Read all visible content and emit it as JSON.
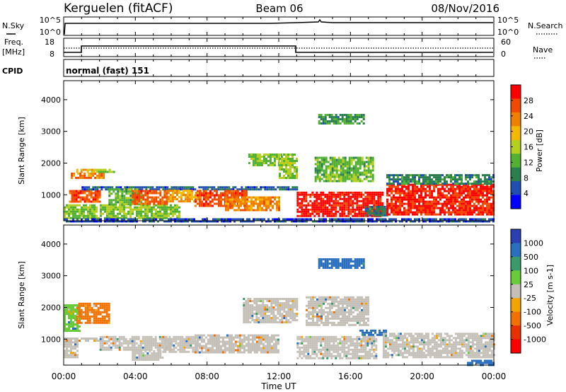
{
  "header": {
    "radar": "Kerguelen (fitACF)",
    "beam": "Beam 06",
    "date": "08/Nov/2016"
  },
  "nsky_panel": {
    "left_label": "N.Sky",
    "left_ticks": [
      "10^5",
      "10^0"
    ],
    "right_label": "N.Search",
    "right_ticks": [
      "10^5",
      "10^0"
    ]
  },
  "freq_panel": {
    "left_label_1": "Freq.",
    "left_label_2": "[MHz]",
    "left_ticks": [
      "18",
      "8"
    ],
    "right_label": "Nave",
    "right_ticks": [
      "60",
      "0"
    ]
  },
  "cpid": {
    "label": "CPID",
    "value": "normal (fast) 151"
  },
  "colors": {
    "power": [
      "#0000ff",
      "#1f4fb0",
      "#2a7f4e",
      "#52b032",
      "#b4cf1f",
      "#f5b800",
      "#f08000",
      "#f04a00",
      "#ff0000"
    ],
    "velocity": [
      "#2a3fb0",
      "#2a6fbf",
      "#3a9a6a",
      "#6acb3a",
      "#c4c0b8",
      "#f3a400",
      "#f07000",
      "#e83000",
      "#ff0000"
    ]
  },
  "chart_data": [
    {
      "type": "heatmap",
      "title": "Power",
      "ylabel": "Slant Range [km]",
      "ylim": [
        180,
        4600
      ],
      "yticks": [
        1000,
        2000,
        3000,
        4000
      ],
      "xlim": [
        0,
        24
      ],
      "colorbar": {
        "label": "Power [dB]",
        "ticks": [
          4,
          8,
          12,
          16,
          20,
          24,
          28
        ],
        "range": [
          0,
          32
        ]
      },
      "patches": [
        {
          "t0": 0.0,
          "t1": 6.5,
          "r0": 250,
          "r1": 700,
          "v": 14
        },
        {
          "t0": 0.3,
          "t1": 2.0,
          "r0": 750,
          "r1": 1150,
          "v": 27
        },
        {
          "t0": 0.4,
          "t1": 2.2,
          "r0": 1500,
          "r1": 1700,
          "v": 24
        },
        {
          "t0": 0.7,
          "t1": 1.8,
          "r0": 1700,
          "r1": 1820,
          "v": 20
        },
        {
          "t0": 1.8,
          "t1": 2.8,
          "r0": 1720,
          "r1": 1820,
          "v": 14
        },
        {
          "t0": 1.0,
          "t1": 13.0,
          "r0": 1180,
          "r1": 1270,
          "v": 6
        },
        {
          "t0": 2.5,
          "t1": 4.3,
          "r0": 720,
          "r1": 1200,
          "v": 13
        },
        {
          "t0": 3.8,
          "t1": 5.8,
          "r0": 720,
          "r1": 1150,
          "v": 26
        },
        {
          "t0": 5.8,
          "t1": 7.6,
          "r0": 780,
          "r1": 1160,
          "v": 21
        },
        {
          "t0": 7.3,
          "t1": 10.2,
          "r0": 680,
          "r1": 1150,
          "v": 27
        },
        {
          "t0": 9.0,
          "t1": 12.0,
          "r0": 500,
          "r1": 950,
          "v": 23
        },
        {
          "t0": 10.3,
          "t1": 12.5,
          "r0": 1900,
          "r1": 2300,
          "v": 14
        },
        {
          "t0": 12.0,
          "t1": 13.0,
          "r0": 1500,
          "r1": 2300,
          "v": 15
        },
        {
          "t0": 13.0,
          "t1": 17.8,
          "r0": 350,
          "r1": 1100,
          "v": 30
        },
        {
          "t0": 14.0,
          "t1": 17.2,
          "r0": 1450,
          "r1": 2200,
          "v": 13
        },
        {
          "t0": 14.2,
          "t1": 16.8,
          "r0": 3250,
          "r1": 3550,
          "v": 10
        },
        {
          "t0": 16.8,
          "t1": 18.0,
          "r0": 350,
          "r1": 650,
          "v": 8
        },
        {
          "t0": 18.0,
          "t1": 24.0,
          "r0": 350,
          "r1": 1350,
          "v": 29
        },
        {
          "t0": 18.0,
          "t1": 24.0,
          "r0": 1380,
          "r1": 1650,
          "v": 9
        },
        {
          "t0": 0.0,
          "t1": 24.0,
          "r0": 180,
          "r1": 260,
          "v": 5
        }
      ]
    },
    {
      "type": "heatmap",
      "title": "Velocity",
      "ylabel": "Slant Range [km]",
      "ylim": [
        180,
        4600
      ],
      "yticks": [
        1000,
        2000,
        3000,
        4000
      ],
      "xlim": [
        0,
        24
      ],
      "colorbar": {
        "label": "Velocity [m s-1]",
        "ticks": [
          1000,
          500,
          100,
          25,
          -25,
          -100,
          -500,
          -1000
        ]
      },
      "patches": [
        {
          "t0": 0.0,
          "t1": 0.9,
          "r0": 1250,
          "r1": 2100,
          "v": 4
        },
        {
          "t0": 0.0,
          "t1": 0.8,
          "r0": 400,
          "r1": 1000,
          "v": 0
        },
        {
          "t0": 0.7,
          "t1": 2.5,
          "r0": 1500,
          "r1": 2150,
          "v": -150
        },
        {
          "t0": 0.0,
          "t1": 2.0,
          "r0": 950,
          "r1": 1050,
          "v": 0
        },
        {
          "t0": 2.0,
          "t1": 6.0,
          "r0": 650,
          "r1": 1100,
          "v": 0
        },
        {
          "t0": 3.8,
          "t1": 5.5,
          "r0": 350,
          "r1": 650,
          "v": 0
        },
        {
          "t0": 5.5,
          "t1": 7.5,
          "r0": 600,
          "r1": 1100,
          "v": 0
        },
        {
          "t0": 7.3,
          "t1": 12.0,
          "r0": 550,
          "r1": 1150,
          "v": 0
        },
        {
          "t0": 10.0,
          "t1": 13.0,
          "r0": 1500,
          "r1": 2300,
          "v": 0
        },
        {
          "t0": 13.0,
          "t1": 17.5,
          "r0": 400,
          "r1": 1100,
          "v": 0
        },
        {
          "t0": 13.5,
          "t1": 17.0,
          "r0": 1450,
          "r1": 2350,
          "v": 0
        },
        {
          "t0": 14.2,
          "t1": 16.8,
          "r0": 3250,
          "r1": 3550,
          "v": 200
        },
        {
          "t0": 16.5,
          "t1": 18.0,
          "r0": 1100,
          "r1": 1300,
          "v": 200
        },
        {
          "t0": 17.8,
          "t1": 24.0,
          "r0": 400,
          "r1": 1200,
          "v": 0
        },
        {
          "t0": 22.5,
          "t1": 24.0,
          "r0": 200,
          "r1": 350,
          "v": 200
        }
      ]
    }
  ],
  "x_axis": {
    "tick_labels": [
      "00:00",
      "04:00",
      "08:00",
      "12:00",
      "16:00",
      "20:00",
      "00:00"
    ],
    "label": "Time UT"
  }
}
